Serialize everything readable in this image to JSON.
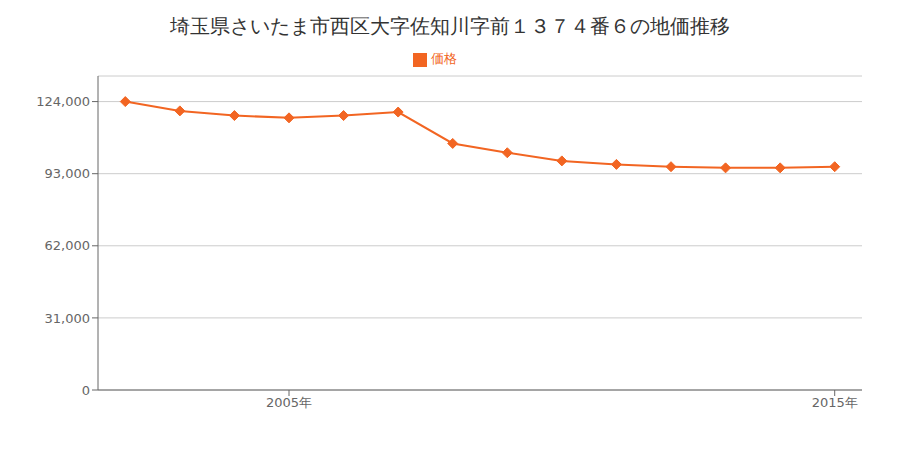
{
  "chart_data": {
    "type": "line",
    "title": "埼玉県さいたま市西区大字佐知川字前１３７４番６の地価推移",
    "x": [
      2002,
      2003,
      2004,
      2005,
      2006,
      2007,
      2008,
      2009,
      2010,
      2011,
      2012,
      2013,
      2014,
      2015
    ],
    "series": [
      {
        "name": "価格",
        "color": "#f26522",
        "marker": "diamond",
        "values": [
          124000,
          120000,
          118000,
          117000,
          118000,
          119500,
          106000,
          102000,
          98500,
          97000,
          96000,
          95500,
          95500,
          96000
        ]
      }
    ],
    "xlim": [
      2001.5,
      2015.5
    ],
    "xticks": [
      {
        "value": 2005,
        "label": "2005年"
      },
      {
        "value": 2015,
        "label": "2015年"
      }
    ],
    "ylim": [
      0,
      135000
    ],
    "yticks": [
      0,
      {
        "value": 31000,
        "label": "31,000"
      },
      {
        "value": 62000,
        "label": "62,000"
      },
      {
        "value": 93000,
        "label": "93,000"
      },
      {
        "value": 124000,
        "label": "124,000"
      }
    ],
    "grid": true,
    "legend": "top"
  }
}
